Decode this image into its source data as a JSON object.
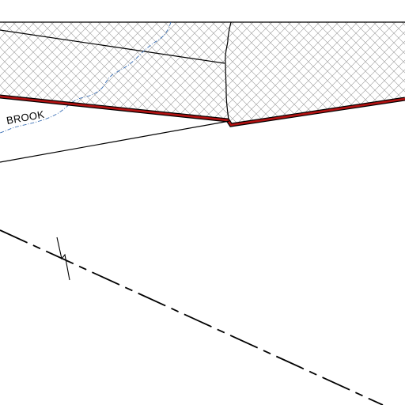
{
  "map": {
    "labels": {
      "stream": "BROOK"
    },
    "colors": {
      "background": "#ffffff",
      "boundary": "#b31212",
      "boundary_outline": "#000000",
      "stream": "#3a6fb5",
      "lines": "#000000",
      "hatch": "#9a9a9a"
    }
  }
}
